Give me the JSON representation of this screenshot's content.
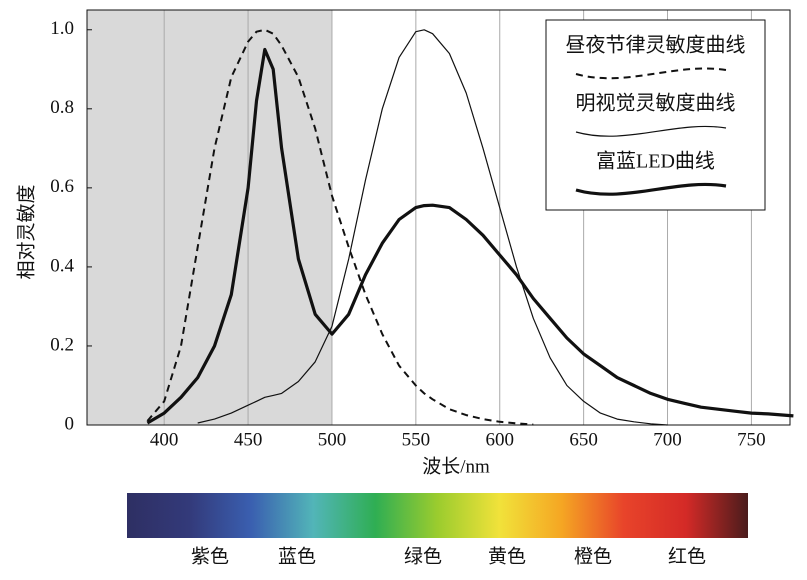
{
  "chart_data": {
    "type": "line",
    "x_label": "波长/nm",
    "y_label": "相对灵敏度",
    "x": [
      390,
      400,
      410,
      420,
      430,
      440,
      450,
      455,
      460,
      465,
      470,
      480,
      490,
      500,
      510,
      520,
      530,
      540,
      550,
      555,
      560,
      570,
      580,
      590,
      600,
      610,
      620,
      630,
      640,
      650,
      660,
      670,
      680,
      690,
      700,
      710,
      720,
      730,
      740,
      750,
      760,
      775
    ],
    "series": [
      {
        "name": "昼夜节律灵敏度曲线",
        "color": "#111111",
        "style": "dashed",
        "values": [
          0.01,
          0.06,
          0.2,
          0.45,
          0.7,
          0.88,
          0.97,
          0.995,
          1.0,
          0.99,
          0.96,
          0.88,
          0.75,
          0.58,
          0.45,
          0.33,
          0.23,
          0.15,
          0.1,
          0.08,
          0.065,
          0.04,
          0.025,
          0.015,
          0.008,
          0.004,
          0.001,
          null,
          null,
          null,
          null,
          null,
          null,
          null,
          null,
          null,
          null,
          null,
          null,
          null,
          null,
          null
        ]
      },
      {
        "name": "明视觉灵敏度曲线",
        "color": "#111111",
        "style": "thin",
        "values": [
          null,
          null,
          null,
          0.005,
          0.015,
          0.03,
          0.05,
          0.06,
          0.07,
          0.075,
          0.08,
          0.11,
          0.16,
          0.25,
          0.42,
          0.62,
          0.8,
          0.93,
          0.995,
          1.0,
          0.99,
          0.94,
          0.84,
          0.7,
          0.55,
          0.4,
          0.27,
          0.17,
          0.1,
          0.06,
          0.03,
          0.015,
          0.008,
          0.003,
          0.0,
          null,
          null,
          null,
          null,
          null,
          null,
          null
        ]
      },
      {
        "name": "富蓝LED曲线",
        "color": "#111111",
        "style": "bold",
        "values": [
          0.005,
          0.03,
          0.07,
          0.12,
          0.2,
          0.33,
          0.6,
          0.82,
          0.95,
          0.9,
          0.7,
          0.42,
          0.28,
          0.23,
          0.28,
          0.38,
          0.46,
          0.52,
          0.55,
          0.555,
          0.556,
          0.55,
          0.52,
          0.48,
          0.43,
          0.38,
          0.32,
          0.27,
          0.22,
          0.18,
          0.15,
          0.12,
          0.1,
          0.08,
          0.065,
          0.055,
          0.045,
          0.04,
          0.035,
          0.03,
          0.028,
          0.023
        ]
      }
    ],
    "xlim": [
      354,
      773
    ],
    "xticks": [
      400,
      450,
      500,
      550,
      600,
      650,
      700,
      750
    ],
    "ylim": [
      0,
      1.05
    ],
    "yticks": [
      0,
      0.2,
      0.4,
      0.6,
      0.8,
      {
        "value": 1,
        "label": "1.0"
      }
    ],
    "grid": "x",
    "shaded_range": [
      354,
      500
    ],
    "shade_color": "#d9d9d9",
    "legend": "upper right",
    "spectrum": {
      "labels": [
        "紫色",
        "蓝色",
        "绿色",
        "黄色",
        "橙色",
        "红色"
      ],
      "colors": [
        "#2e2f63",
        "#333a7a",
        "#3a5fb0",
        "#52b5b8",
        "#2fae53",
        "#9bcc2e",
        "#f1e23a",
        "#f5a623",
        "#e8442a",
        "#d42a27",
        "#4a1c1c"
      ]
    }
  }
}
